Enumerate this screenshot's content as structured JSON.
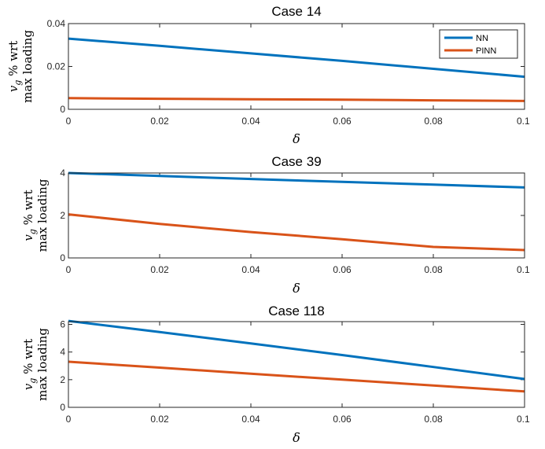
{
  "figure": {
    "background": "#ffffff"
  },
  "legend": {
    "location": "top-right",
    "entries": [
      {
        "name": "NN",
        "color": "#0072BD"
      },
      {
        "name": "PINN",
        "color": "#D95319"
      }
    ]
  },
  "chart_data": [
    {
      "type": "line",
      "title": "Case 14",
      "xlabel": "δ",
      "ylabel": [
        "v",
        "g",
        " % wrt",
        "max loading"
      ],
      "xlim": [
        0,
        0.1
      ],
      "ylim": [
        0,
        0.04
      ],
      "xticks": [
        0,
        0.02,
        0.04,
        0.06,
        0.08,
        0.1
      ],
      "xtick_labels": [
        "0",
        "0.02",
        "0.04",
        "0.06",
        "0.08",
        "0.1"
      ],
      "yticks": [
        0,
        0.02,
        0.04
      ],
      "ytick_labels": [
        "0",
        "0.02",
        "0.04"
      ],
      "show_legend": true,
      "series": [
        {
          "name": "NN",
          "color": "#0072BD",
          "x": [
            0,
            0.02,
            0.04,
            0.06,
            0.08,
            0.1
          ],
          "values": [
            0.033,
            0.0296,
            0.0261,
            0.0226,
            0.0189,
            0.0152
          ]
        },
        {
          "name": "PINN",
          "color": "#D95319",
          "x": [
            0,
            0.02,
            0.04,
            0.06,
            0.08,
            0.1
          ],
          "values": [
            0.0052,
            0.0049,
            0.0047,
            0.0045,
            0.0042,
            0.0039
          ]
        }
      ]
    },
    {
      "type": "line",
      "title": "Case 39",
      "xlabel": "δ",
      "ylabel": [
        "v",
        "g",
        " % wrt",
        "max loading"
      ],
      "xlim": [
        0,
        0.1
      ],
      "ylim": [
        0,
        4
      ],
      "xticks": [
        0,
        0.02,
        0.04,
        0.06,
        0.08,
        0.1
      ],
      "xtick_labels": [
        "0",
        "0.02",
        "0.04",
        "0.06",
        "0.08",
        "0.1"
      ],
      "yticks": [
        0,
        2,
        4
      ],
      "ytick_labels": [
        "0",
        "2",
        "4"
      ],
      "show_legend": false,
      "series": [
        {
          "name": "NN",
          "color": "#0072BD",
          "x": [
            0,
            0.02,
            0.04,
            0.06,
            0.08,
            0.1
          ],
          "values": [
            4.0,
            3.86,
            3.72,
            3.58,
            3.45,
            3.32
          ]
        },
        {
          "name": "PINN",
          "color": "#D95319",
          "x": [
            0,
            0.02,
            0.04,
            0.06,
            0.08,
            0.1
          ],
          "values": [
            2.05,
            1.6,
            1.22,
            0.88,
            0.52,
            0.37
          ]
        }
      ]
    },
    {
      "type": "line",
      "title": "Case 118",
      "xlabel": "δ",
      "ylabel": [
        "v",
        "g",
        " % wrt",
        "max loading"
      ],
      "xlim": [
        0,
        0.1
      ],
      "ylim": [
        0,
        6.2
      ],
      "xticks": [
        0,
        0.02,
        0.04,
        0.06,
        0.08,
        0.1
      ],
      "xtick_labels": [
        "0",
        "0.02",
        "0.04",
        "0.06",
        "0.08",
        "0.1"
      ],
      "yticks": [
        0,
        2,
        4,
        6
      ],
      "ytick_labels": [
        "0",
        "2",
        "4",
        "6"
      ],
      "show_legend": false,
      "series": [
        {
          "name": "NN",
          "color": "#0072BD",
          "x": [
            0,
            0.02,
            0.04,
            0.06,
            0.08,
            0.1
          ],
          "values": [
            6.25,
            5.45,
            4.62,
            3.78,
            2.92,
            2.05
          ]
        },
        {
          "name": "PINN",
          "color": "#D95319",
          "x": [
            0,
            0.02,
            0.04,
            0.06,
            0.08,
            0.1
          ],
          "values": [
            3.3,
            2.87,
            2.43,
            2.0,
            1.58,
            1.15
          ]
        }
      ]
    }
  ]
}
